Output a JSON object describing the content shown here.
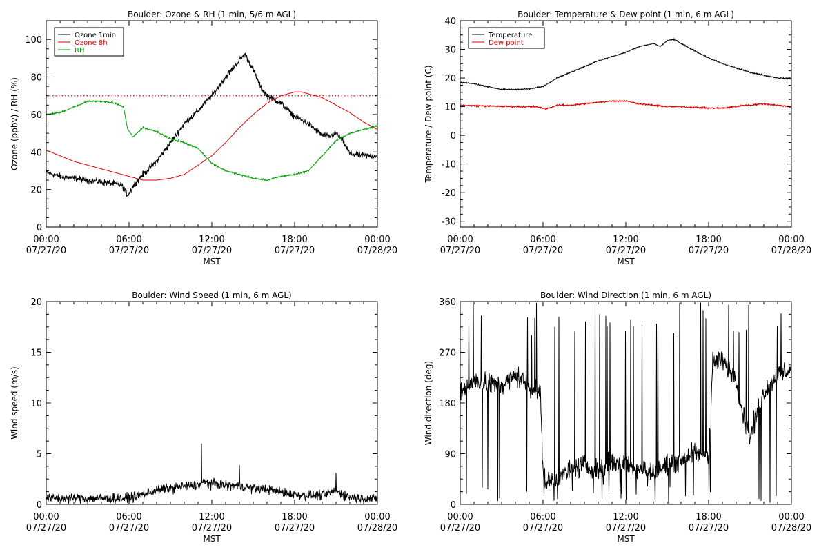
{
  "chart_data": [
    {
      "type": "line",
      "title": "Boulder: Ozone & RH (1 min, 5/6 m AGL)",
      "xlabel": "MST",
      "ylabel": "Ozone (ppbv) / RH (%)",
      "ylim": [
        0,
        110
      ],
      "yticks": [
        0,
        20,
        40,
        60,
        80,
        100
      ],
      "xlim": [
        0,
        24
      ],
      "xticks": [
        0,
        6,
        12,
        18,
        24
      ],
      "xtick_labels": [
        [
          "00:00",
          "07/27/20"
        ],
        [
          "06:00",
          "07/27/20"
        ],
        [
          "12:00",
          "07/27/20"
        ],
        [
          "18:00",
          "07/27/20"
        ],
        [
          "00:00",
          "07/28/20"
        ]
      ],
      "legend_position": "top-left",
      "grid": false,
      "reference_line": {
        "y": 70,
        "style": "dotted",
        "color": "#e00000"
      },
      "series": [
        {
          "name": "Ozone 1min",
          "color": "#000000",
          "noise": 2.5,
          "x": [
            0,
            1,
            2,
            3,
            4,
            5,
            5.5,
            5.9,
            6.5,
            7,
            8,
            9,
            10,
            11,
            12,
            13,
            14,
            14.4,
            15,
            15.5,
            16,
            17,
            18,
            19,
            20,
            20.5,
            21,
            21.5,
            22,
            23,
            24
          ],
          "y": [
            29,
            27,
            26,
            25,
            24,
            23,
            22,
            17,
            24,
            28,
            35,
            45,
            55,
            62,
            70,
            80,
            89,
            92,
            84,
            75,
            70,
            66,
            59,
            55,
            49,
            48,
            50,
            46,
            39,
            38,
            38
          ]
        },
        {
          "name": "Ozone 8h",
          "color": "#e00000",
          "noise": 0,
          "x": [
            0,
            1,
            2,
            3,
            4,
            5,
            6,
            7,
            8,
            9,
            10,
            11,
            12,
            13,
            14,
            15,
            16,
            17,
            18,
            18.5,
            19,
            20,
            21,
            22,
            23,
            24
          ],
          "y": [
            41,
            38,
            35,
            33,
            31,
            29,
            27,
            25,
            25,
            26,
            28,
            33,
            38,
            45,
            53,
            60,
            66,
            70,
            72,
            72,
            71,
            69,
            65,
            61,
            56,
            52
          ]
        },
        {
          "name": "RH",
          "color": "#00a000",
          "noise": 0.6,
          "x": [
            0,
            1,
            2,
            3,
            4,
            5,
            5.6,
            5.9,
            6.3,
            7,
            8,
            9,
            10,
            11,
            12,
            13,
            14,
            15,
            16,
            17,
            18,
            19,
            20,
            21,
            22,
            23,
            24
          ],
          "y": [
            60,
            61,
            64,
            67,
            67,
            66,
            64,
            52,
            48,
            53,
            51,
            47,
            45,
            42,
            34,
            30,
            28,
            26,
            25,
            27,
            28,
            30,
            38,
            46,
            50,
            52,
            54
          ]
        }
      ]
    },
    {
      "type": "line",
      "title": "Boulder: Temperature & Dew point (1 min, 6 m AGL)",
      "xlabel": "MST",
      "ylabel": "Temperature / Dew point (C)",
      "ylim": [
        -32,
        40
      ],
      "yticks": [
        -30,
        -20,
        -10,
        0,
        10,
        20,
        30,
        40
      ],
      "xlim": [
        0,
        24
      ],
      "xticks": [
        0,
        6,
        12,
        18,
        24
      ],
      "xtick_labels": [
        [
          "00:00",
          "07/27/20"
        ],
        [
          "06:00",
          "07/27/20"
        ],
        [
          "12:00",
          "07/27/20"
        ],
        [
          "18:00",
          "07/27/20"
        ],
        [
          "00:00",
          "07/28/20"
        ]
      ],
      "legend_position": "top-left",
      "grid": false,
      "series": [
        {
          "name": "Temperature",
          "color": "#000000",
          "noise": 0.3,
          "x": [
            0,
            1,
            2,
            3,
            4,
            5,
            6,
            7,
            8,
            9,
            10,
            11,
            12,
            13,
            14,
            14.5,
            15,
            15.5,
            16,
            17,
            18,
            19,
            20,
            21,
            22,
            23,
            24
          ],
          "y": [
            18.5,
            18,
            17,
            16,
            16,
            16.2,
            17,
            20,
            22,
            24,
            26,
            27.5,
            29,
            31,
            32,
            31,
            33,
            33.5,
            32,
            29.5,
            27,
            25,
            23.5,
            22,
            21,
            20,
            19.8
          ]
        },
        {
          "name": "Dew point",
          "color": "#e00000",
          "noise": 0.4,
          "x": [
            0,
            2,
            4,
            5.5,
            6.2,
            7,
            8,
            9,
            10,
            11,
            12,
            13,
            14,
            15,
            16,
            17,
            18,
            19,
            20,
            20.5,
            21,
            22,
            23,
            24
          ],
          "y": [
            10.5,
            10.2,
            10,
            10,
            9.2,
            10.5,
            10.5,
            11,
            11.5,
            12,
            12,
            11,
            10.5,
            10,
            10,
            9.8,
            9.5,
            9.5,
            10,
            10.5,
            10.5,
            11,
            10.5,
            10
          ]
        }
      ]
    },
    {
      "type": "line",
      "title": "Boulder: Wind Speed (1 min, 6 m AGL)",
      "xlabel": "MST",
      "ylabel": "Wind speed (m/s)",
      "ylim": [
        0,
        20
      ],
      "yticks": [
        0,
        5,
        10,
        15,
        20
      ],
      "xlim": [
        0,
        24
      ],
      "xticks": [
        0,
        6,
        12,
        18,
        24
      ],
      "xtick_labels": [
        [
          "00:00",
          "07/27/20"
        ],
        [
          "06:00",
          "07/27/20"
        ],
        [
          "12:00",
          "07/27/20"
        ],
        [
          "18:00",
          "07/27/20"
        ],
        [
          "00:00",
          "07/28/20"
        ]
      ],
      "grid": false,
      "series": [
        {
          "color": "#000000",
          "noise": 0.7,
          "x": [
            0,
            3,
            6,
            7,
            8,
            9,
            10,
            11,
            11.5,
            12,
            13,
            14,
            15,
            16,
            17,
            18,
            19,
            20,
            21,
            22,
            23,
            24
          ],
          "y": [
            0.6,
            0.6,
            0.6,
            1.0,
            1.4,
            1.6,
            1.8,
            1.9,
            2.2,
            2.0,
            1.9,
            1.8,
            1.6,
            1.5,
            1.2,
            1.0,
            0.9,
            0.9,
            1.3,
            0.7,
            0.6,
            0.5
          ],
          "peaks": [
            [
              11.25,
              6.0
            ],
            [
              14.0,
              3.9
            ],
            [
              21.0,
              3.1
            ]
          ]
        }
      ]
    },
    {
      "type": "line",
      "title": "Boulder: Wind Direction (1 min, 6 m AGL)",
      "xlabel": "MST",
      "ylabel": "Wind direction (deg)",
      "ylim": [
        0,
        360
      ],
      "yticks": [
        0,
        90,
        180,
        270,
        360
      ],
      "xlim": [
        0,
        24
      ],
      "xticks": [
        0,
        6,
        12,
        18,
        24
      ],
      "xtick_labels": [
        [
          "00:00",
          "07/27/20"
        ],
        [
          "06:00",
          "07/27/20"
        ],
        [
          "12:00",
          "07/27/20"
        ],
        [
          "18:00",
          "07/27/20"
        ],
        [
          "00:00",
          "07/28/20"
        ]
      ],
      "grid": false,
      "series": [
        {
          "color": "#000000",
          "noise": 28,
          "x": [
            0,
            1,
            2,
            3,
            4,
            5,
            5.8,
            6.0,
            6.3,
            7,
            8,
            9,
            10,
            11,
            12,
            13,
            14,
            15,
            16,
            17,
            18,
            18.3,
            19,
            20,
            20.5,
            21,
            22,
            23,
            24
          ],
          "y": [
            200,
            220,
            215,
            210,
            230,
            210,
            200,
            60,
            40,
            45,
            60,
            70,
            60,
            75,
            70,
            65,
            55,
            70,
            80,
            90,
            90,
            250,
            255,
            220,
            160,
            120,
            200,
            230,
            240
          ],
          "spike_count": 70
        }
      ]
    }
  ]
}
